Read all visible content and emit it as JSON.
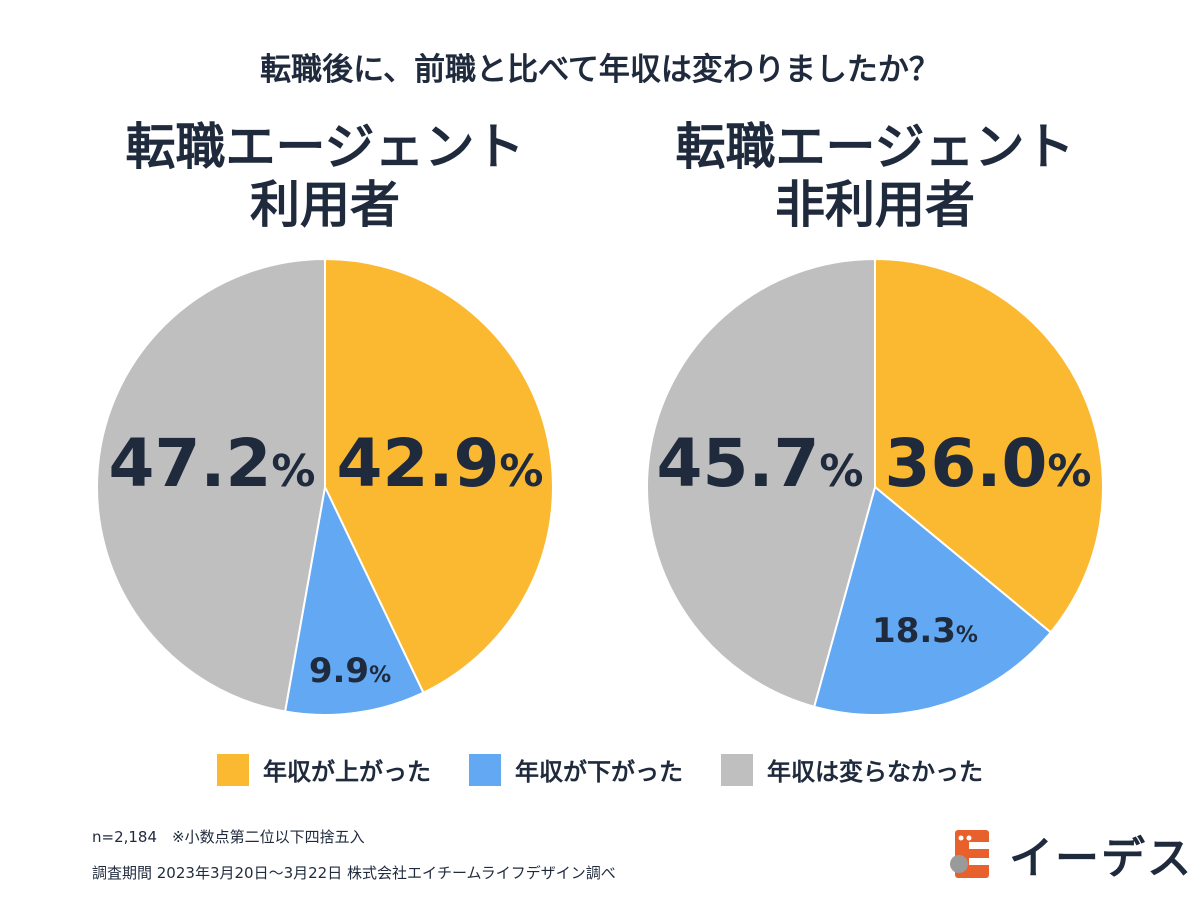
{
  "question": "転職後に、前職と比べて年収は変わりましたか？",
  "chart_data": [
    {
      "type": "pie",
      "title": "転職エージェント\n利用者",
      "title_lines": [
        "転職エージェント",
        "利用者"
      ],
      "categories": [
        "年収が上がった",
        "年収が下がった",
        "年収は変わらなかった"
      ],
      "values": [
        42.9,
        9.9,
        47.2
      ],
      "labels": [
        "42.9",
        "9.9",
        "47.2"
      ],
      "unit": "%",
      "colors": [
        "#FBB931",
        "#63A8F2",
        "#BFBFBF"
      ]
    },
    {
      "type": "pie",
      "title": "転職エージェント\n非利用者",
      "title_lines": [
        "転職エージェント",
        "非利用者"
      ],
      "categories": [
        "年収が上がった",
        "年収が下がった",
        "年収は変わらなかった"
      ],
      "values": [
        36.0,
        18.3,
        45.7
      ],
      "labels": [
        "36.0",
        "18.3",
        "45.7"
      ],
      "unit": "%",
      "colors": [
        "#FBB931",
        "#63A8F2",
        "#BFBFBF"
      ]
    }
  ],
  "legend": [
    {
      "label": "年収が上がった",
      "color": "#FBB931"
    },
    {
      "label": "年収が下がった",
      "color": "#63A8F2"
    },
    {
      "label": "年収は変らなかった",
      "color": "#BFBFBF"
    }
  ],
  "notes": {
    "sample": "n=2,184　※小数点第二位以下四捨五入",
    "period": "調査期間 2023年3月20日〜3月22日 株式会社エイチームライフデザイン調べ"
  },
  "logo": {
    "text": "イーデス",
    "color": "#E8602C"
  }
}
